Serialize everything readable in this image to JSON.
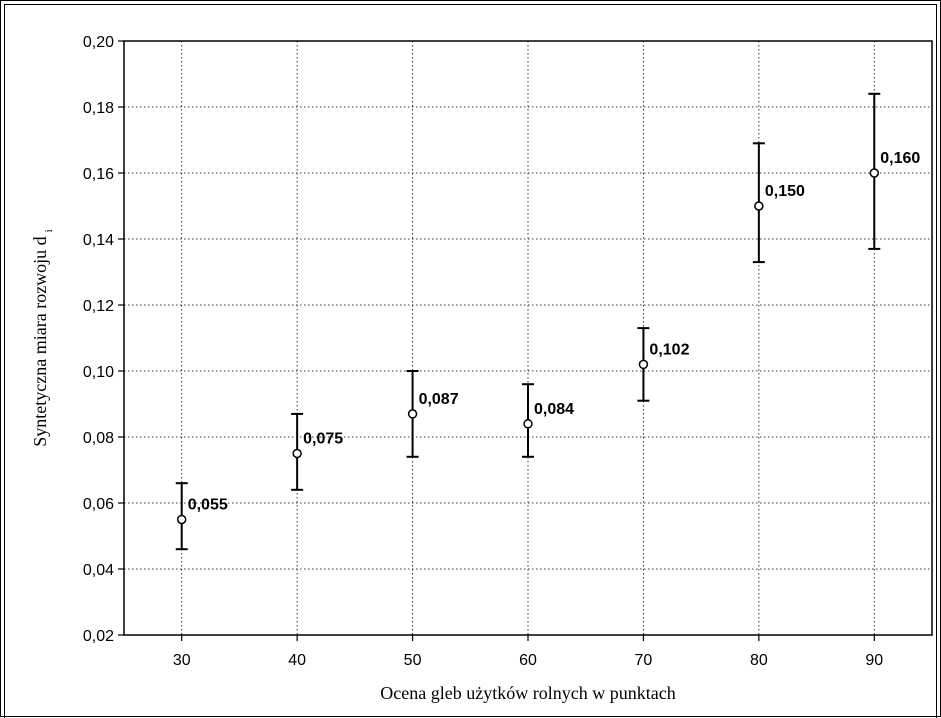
{
  "chart_data": {
    "type": "scatter",
    "title": "",
    "xlabel": "Ocena gleb użytków rolnych  w punktach",
    "ylabel_main": "Syntetyczna miara rozwoju d",
    "ylabel_sub": "i",
    "x": [
      30,
      40,
      50,
      60,
      70,
      80,
      90
    ],
    "y": [
      0.055,
      0.075,
      0.087,
      0.084,
      0.102,
      0.15,
      0.16
    ],
    "y_low": [
      0.046,
      0.064,
      0.074,
      0.074,
      0.091,
      0.133,
      0.137
    ],
    "y_high": [
      0.066,
      0.087,
      0.1,
      0.096,
      0.113,
      0.169,
      0.184
    ],
    "data_labels": [
      "0,055",
      "0,075",
      "0,087",
      "0,084",
      "0,102",
      "0,150",
      "0,160"
    ],
    "xlim": [
      25,
      95
    ],
    "ylim": [
      0.02,
      0.2
    ],
    "x_ticks": [
      30,
      40,
      50,
      60,
      70,
      80,
      90
    ],
    "x_tick_labels": [
      "30",
      "40",
      "50",
      "60",
      "70",
      "80",
      "90"
    ],
    "y_ticks": [
      0.02,
      0.04,
      0.06,
      0.08,
      0.1,
      0.12,
      0.14,
      0.16,
      0.18,
      0.2
    ],
    "y_tick_labels": [
      "0,02",
      "0,04",
      "0,06",
      "0,08",
      "0,10",
      "0,12",
      "0,14",
      "0,16",
      "0,18",
      "0,20"
    ],
    "grid": true,
    "legend": "none"
  }
}
